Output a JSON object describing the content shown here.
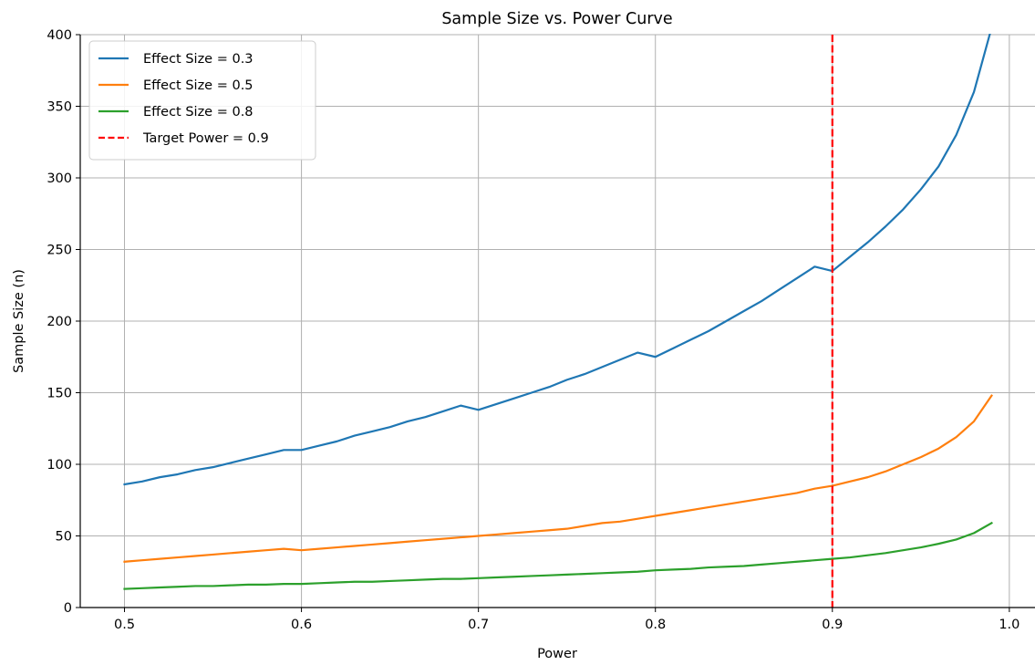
{
  "chart_data": {
    "type": "line",
    "title": "Sample Size vs. Power Curve",
    "xlabel": "Power",
    "ylabel": "Sample Size (n)",
    "xlim": [
      0.475,
      1.0145
    ],
    "ylim": [
      0,
      400
    ],
    "xticks": [
      0.5,
      0.6,
      0.7,
      0.8,
      0.9,
      1.0
    ],
    "xtick_labels": [
      "0.5",
      "0.6",
      "0.7",
      "0.8",
      "0.9",
      "1.0"
    ],
    "yticks": [
      0,
      50,
      100,
      150,
      200,
      250,
      300,
      350,
      400
    ],
    "ytick_labels": [
      "0",
      "50",
      "100",
      "150",
      "200",
      "250",
      "300",
      "350",
      "400"
    ],
    "grid": true,
    "legend_position": "top-left",
    "x": [
      0.5,
      0.51,
      0.52,
      0.53,
      0.54,
      0.55,
      0.56,
      0.57,
      0.58,
      0.59,
      0.6,
      0.61,
      0.62,
      0.63,
      0.64,
      0.65,
      0.66,
      0.67,
      0.68,
      0.69,
      0.7,
      0.71,
      0.72,
      0.73,
      0.74,
      0.75,
      0.76,
      0.77,
      0.78,
      0.79,
      0.8,
      0.81,
      0.82,
      0.83,
      0.84,
      0.85,
      0.86,
      0.87,
      0.88,
      0.89,
      0.9,
      0.91,
      0.92,
      0.93,
      0.94,
      0.95,
      0.96,
      0.97,
      0.98,
      0.99
    ],
    "series": [
      {
        "name": "Effect Size = 0.3",
        "color": "#1f77b4",
        "values": [
          86,
          88,
          91,
          93,
          96,
          98,
          101,
          104,
          107,
          110,
          110,
          113,
          116,
          120,
          123,
          126,
          130,
          133,
          137,
          141,
          138,
          142,
          146,
          150,
          154,
          159,
          163,
          168,
          173,
          178,
          175,
          181,
          187,
          193,
          200,
          207,
          214,
          222,
          230,
          238,
          235,
          245,
          255,
          266,
          278,
          292,
          308,
          330,
          360,
          405
        ]
      },
      {
        "name": "Effect Size = 0.5",
        "color": "#ff7f0e",
        "values": [
          32,
          33,
          34,
          35,
          36,
          37,
          38,
          39,
          40,
          41,
          40,
          41,
          42,
          43,
          44,
          45,
          46,
          47,
          48,
          49,
          50,
          51,
          52,
          53,
          54,
          55,
          57,
          59,
          60,
          62,
          64,
          66,
          68,
          70,
          72,
          74,
          76,
          78,
          80,
          83,
          85,
          88,
          91,
          95,
          100,
          105,
          111,
          119,
          130,
          148
        ]
      },
      {
        "name": "Effect Size = 0.8",
        "color": "#2ca02c",
        "values": [
          13,
          13.5,
          14,
          14.5,
          15,
          15,
          15.5,
          16,
          16,
          16.5,
          16.5,
          17,
          17.5,
          18,
          18,
          18.5,
          19,
          19.5,
          20,
          20,
          20.5,
          21,
          21.5,
          22,
          22.5,
          23,
          23.5,
          24,
          24.5,
          25,
          26,
          26.5,
          27,
          28,
          28.5,
          29,
          30,
          31,
          32,
          33,
          34,
          35,
          36.5,
          38,
          40,
          42,
          44.5,
          47.5,
          52,
          59
        ]
      }
    ],
    "reference_lines": [
      {
        "name": "Target Power = 0.9",
        "x": 0.9,
        "color": "#ff0000",
        "style": "dashed"
      }
    ]
  }
}
